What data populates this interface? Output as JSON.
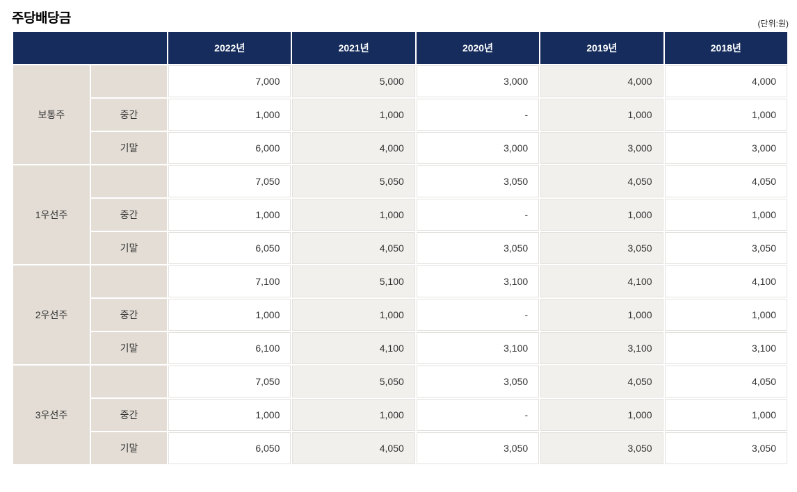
{
  "page": {
    "title": "주당배당금",
    "unit_label": "(단위:원)"
  },
  "colors": {
    "header_bg": "#152C5C",
    "header_text": "#FFFFFF",
    "label_cell_bg": "#E3DDD5",
    "stripe_column_bg": "#F2F0ED",
    "cell_border": "#E3E1DE",
    "body_text": "#333333"
  },
  "table": {
    "year_headers": [
      "2022년",
      "2021년",
      "2020년",
      "2019년",
      "2018년"
    ],
    "groups": [
      {
        "name": "보통주",
        "rows": [
          {
            "label": "",
            "values": [
              "7,000",
              "5,000",
              "3,000",
              "4,000",
              "4,000"
            ]
          },
          {
            "label": "중간",
            "values": [
              "1,000",
              "1,000",
              "-",
              "1,000",
              "1,000"
            ]
          },
          {
            "label": "기말",
            "values": [
              "6,000",
              "4,000",
              "3,000",
              "3,000",
              "3,000"
            ]
          }
        ]
      },
      {
        "name": "1우선주",
        "rows": [
          {
            "label": "",
            "values": [
              "7,050",
              "5,050",
              "3,050",
              "4,050",
              "4,050"
            ]
          },
          {
            "label": "중간",
            "values": [
              "1,000",
              "1,000",
              "-",
              "1,000",
              "1,000"
            ]
          },
          {
            "label": "기말",
            "values": [
              "6,050",
              "4,050",
              "3,050",
              "3,050",
              "3,050"
            ]
          }
        ]
      },
      {
        "name": "2우선주",
        "rows": [
          {
            "label": "",
            "values": [
              "7,100",
              "5,100",
              "3,100",
              "4,100",
              "4,100"
            ]
          },
          {
            "label": "중간",
            "values": [
              "1,000",
              "1,000",
              "-",
              "1,000",
              "1,000"
            ]
          },
          {
            "label": "기말",
            "values": [
              "6,100",
              "4,100",
              "3,100",
              "3,100",
              "3,100"
            ]
          }
        ]
      },
      {
        "name": "3우선주",
        "rows": [
          {
            "label": "",
            "values": [
              "7,050",
              "5,050",
              "3,050",
              "4,050",
              "4,050"
            ]
          },
          {
            "label": "중간",
            "values": [
              "1,000",
              "1,000",
              "-",
              "1,000",
              "1,000"
            ]
          },
          {
            "label": "기말",
            "values": [
              "6,050",
              "4,050",
              "3,050",
              "3,050",
              "3,050"
            ]
          }
        ]
      }
    ]
  }
}
